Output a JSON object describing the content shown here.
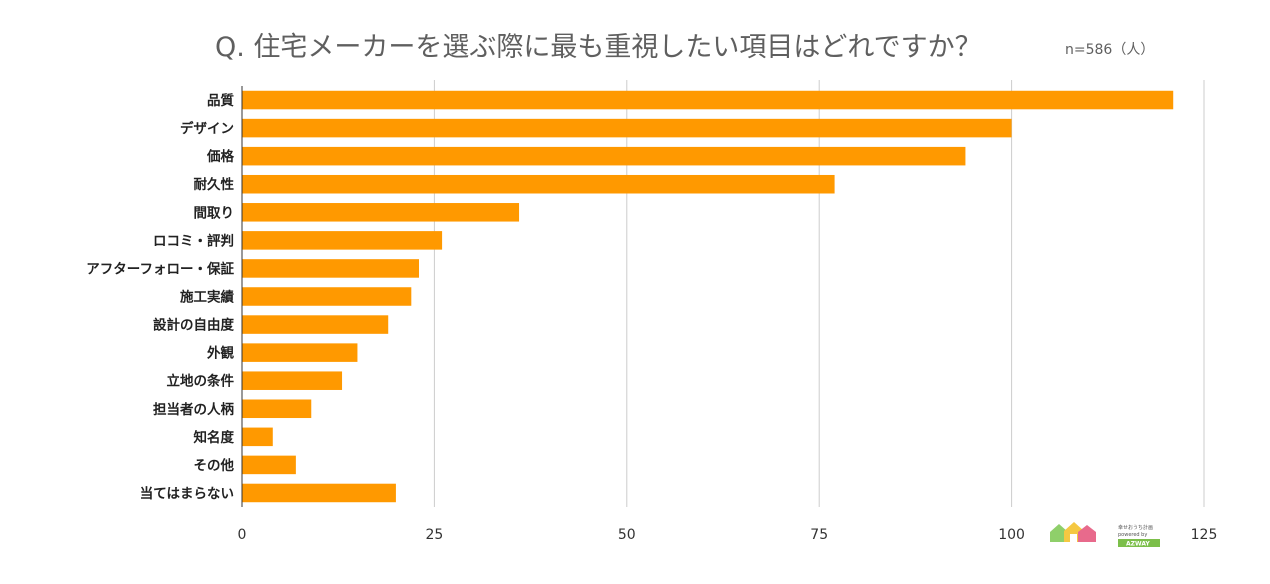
{
  "chart_data": {
    "type": "bar",
    "orientation": "horizontal",
    "title": "Q. 住宅メーカーを選ぶ際に最も重視したい項目はどれですか？",
    "subtitle": "n=586（人）",
    "categories": [
      "品質",
      "デザイン",
      "価格",
      "耐久性",
      "間取り",
      "ロコミ・評判",
      "アフターフォロー・保証",
      "施工実績",
      "設計の自由度",
      "外観",
      "立地の条件",
      "担当者の人柄",
      "知名度",
      "その他",
      "当てはまらない"
    ],
    "values": [
      121,
      100,
      94,
      77,
      36,
      26,
      23,
      22,
      19,
      15,
      13,
      9,
      4,
      7,
      20
    ],
    "xlim": [
      0,
      125
    ],
    "xticks": [
      0,
      25,
      50,
      75,
      100,
      125
    ],
    "grid": true,
    "bar_color": "#ff9900"
  },
  "logo": {
    "line1": "幸せおうち計画",
    "line2": "powered by",
    "brand": "AZWAY"
  }
}
